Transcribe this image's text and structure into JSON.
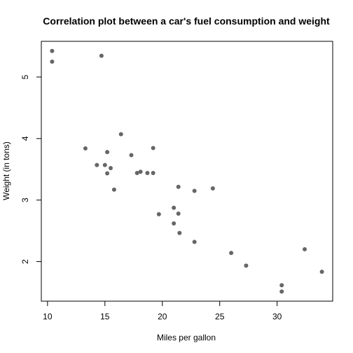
{
  "chart_data": {
    "type": "scatter",
    "title": "Correlation plot between a car's fuel consumption and weight",
    "xlabel": "Miles per gallon",
    "ylabel": "Weight (in tons)",
    "xlim": [
      10.4,
      33.9
    ],
    "ylim": [
      1.513,
      5.424
    ],
    "x_ticks": [
      10,
      15,
      20,
      25,
      30
    ],
    "y_ticks": [
      2,
      3,
      4,
      5
    ],
    "grid": false,
    "legend": "none",
    "point_color": "#666666",
    "series": [
      {
        "points": [
          {
            "x": 21.0,
            "y": 2.62
          },
          {
            "x": 21.0,
            "y": 2.875
          },
          {
            "x": 22.8,
            "y": 2.32
          },
          {
            "x": 21.4,
            "y": 3.215
          },
          {
            "x": 18.7,
            "y": 3.44
          },
          {
            "x": 18.1,
            "y": 3.46
          },
          {
            "x": 14.3,
            "y": 3.57
          },
          {
            "x": 24.4,
            "y": 3.19
          },
          {
            "x": 22.8,
            "y": 3.15
          },
          {
            "x": 19.2,
            "y": 3.44
          },
          {
            "x": 17.8,
            "y": 3.44
          },
          {
            "x": 16.4,
            "y": 4.07
          },
          {
            "x": 17.3,
            "y": 3.73
          },
          {
            "x": 15.2,
            "y": 3.78
          },
          {
            "x": 10.4,
            "y": 5.25
          },
          {
            "x": 10.4,
            "y": 5.424
          },
          {
            "x": 14.7,
            "y": 5.345
          },
          {
            "x": 32.4,
            "y": 2.2
          },
          {
            "x": 30.4,
            "y": 1.615
          },
          {
            "x": 33.9,
            "y": 1.835
          },
          {
            "x": 21.5,
            "y": 2.465
          },
          {
            "x": 15.5,
            "y": 3.52
          },
          {
            "x": 15.2,
            "y": 3.435
          },
          {
            "x": 13.3,
            "y": 3.84
          },
          {
            "x": 19.2,
            "y": 3.845
          },
          {
            "x": 27.3,
            "y": 1.935
          },
          {
            "x": 26.0,
            "y": 2.14
          },
          {
            "x": 30.4,
            "y": 1.513
          },
          {
            "x": 15.8,
            "y": 3.17
          },
          {
            "x": 19.7,
            "y": 2.77
          },
          {
            "x": 15.0,
            "y": 3.57
          },
          {
            "x": 21.4,
            "y": 2.78
          }
        ]
      }
    ]
  }
}
